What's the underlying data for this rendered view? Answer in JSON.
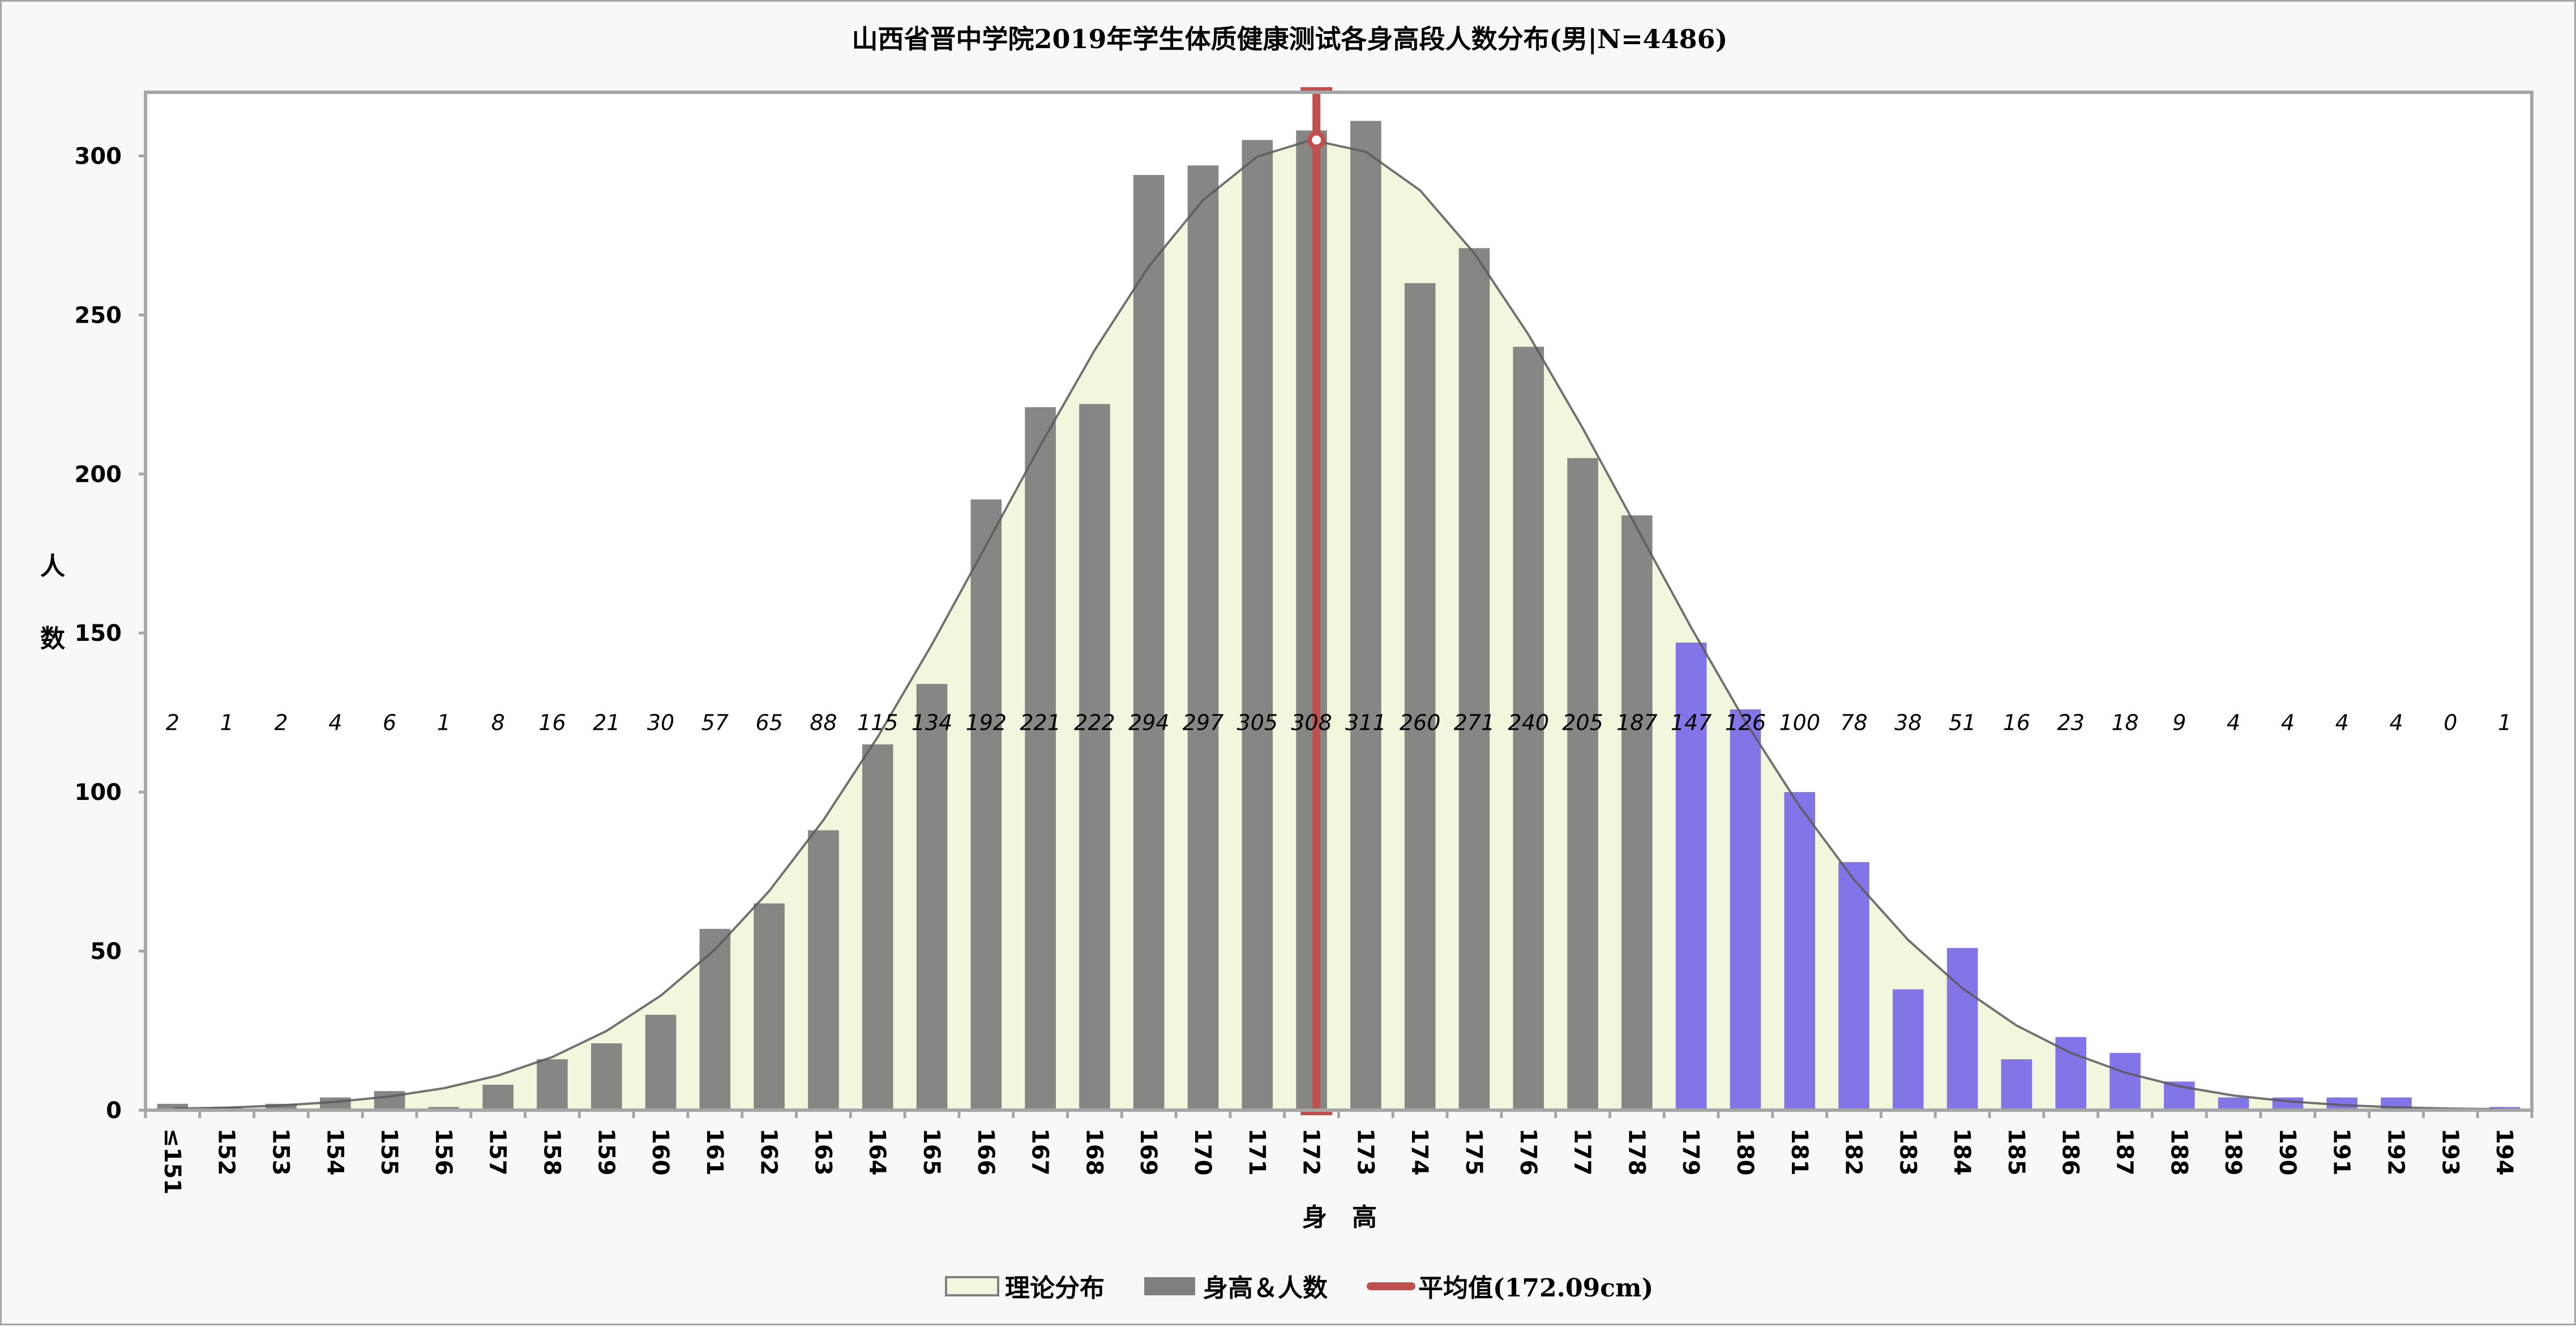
{
  "chart_data": {
    "type": "bar",
    "title": "山西省晋中学院2019年学生体质健康测试各身高段人数分布(男|N=4486)",
    "xlabel": "身　高",
    "ylabel": "人数",
    "ylim": [
      0,
      320
    ],
    "yticks": [
      0,
      50,
      100,
      150,
      200,
      250,
      300
    ],
    "grid": false,
    "legend_position": "bottom",
    "categories": [
      "≤151",
      "152",
      "153",
      "154",
      "155",
      "156",
      "157",
      "158",
      "159",
      "160",
      "161",
      "162",
      "163",
      "164",
      "165",
      "166",
      "167",
      "168",
      "169",
      "170",
      "171",
      "172",
      "173",
      "174",
      "175",
      "176",
      "177",
      "178",
      "179",
      "180",
      "181",
      "182",
      "183",
      "184",
      "185",
      "186",
      "187",
      "188",
      "189",
      "190",
      "191",
      "192",
      "193",
      "194"
    ],
    "series": [
      {
        "name": "理论分布",
        "type": "area",
        "color": "#f1f7dc",
        "line_color": "#595959",
        "values": [
          0.5,
          0.8,
          1.5,
          2.6,
          4.3,
          6.9,
          10.9,
          16.7,
          24.9,
          36.0,
          50.5,
          68.9,
          91.2,
          117.3,
          146.4,
          177.6,
          209.0,
          238.9,
          265.3,
          286.1,
          299.8,
          305.0,
          301.3,
          289.2,
          269.4,
          243.8,
          214.4,
          183.0,
          151.7,
          122.1,
          95.5,
          72.5,
          53.5,
          38.3,
          26.6,
          18.0,
          11.8,
          7.5,
          4.6,
          2.8,
          1.6,
          0.9,
          0.5,
          0.3
        ]
      },
      {
        "name": "身高＆人数",
        "type": "bar",
        "color": "#7f7f7f",
        "highlight_color": "#7b6ee8",
        "highlight_from_index": 28,
        "values": [
          2,
          1,
          2,
          4,
          6,
          1,
          8,
          16,
          21,
          30,
          57,
          65,
          88,
          115,
          134,
          192,
          221,
          222,
          294,
          297,
          305,
          308,
          311,
          260,
          271,
          240,
          205,
          187,
          147,
          126,
          100,
          78,
          38,
          51,
          16,
          23,
          18,
          9,
          4,
          4,
          4,
          4,
          0,
          1
        ]
      },
      {
        "name": "平均值(172.09cm)",
        "type": "vline",
        "color": "#c0504d",
        "x": 172.09
      }
    ],
    "data_labels_y": 122
  },
  "legend": [
    {
      "label": "理论分布",
      "kind": "area"
    },
    {
      "label": "身高＆人数",
      "kind": "bar"
    },
    {
      "label": "平均值(172.09cm)",
      "kind": "line"
    }
  ]
}
